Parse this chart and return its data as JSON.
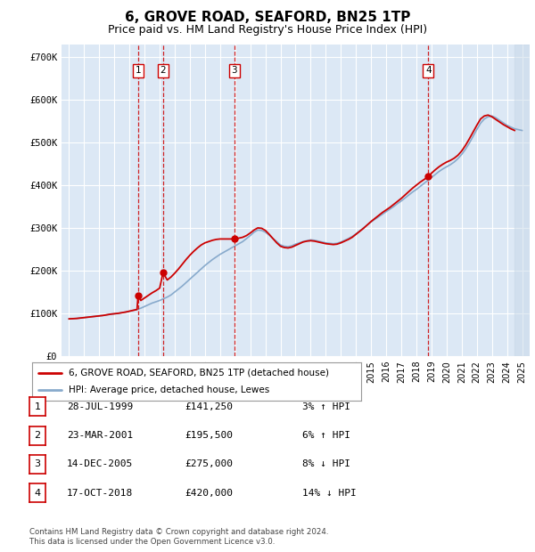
{
  "title": "6, GROVE ROAD, SEAFORD, BN25 1TP",
  "subtitle": "Price paid vs. HM Land Registry's House Price Index (HPI)",
  "title_fontsize": 11,
  "subtitle_fontsize": 9,
  "xlim_start": 1994.5,
  "xlim_end": 2025.5,
  "ylim_min": 0,
  "ylim_max": 730000,
  "yticks": [
    0,
    100000,
    200000,
    300000,
    400000,
    500000,
    600000,
    700000
  ],
  "ytick_labels": [
    "£0",
    "£100K",
    "£200K",
    "£300K",
    "£400K",
    "£500K",
    "£600K",
    "£700K"
  ],
  "plot_bg_color": "#dce8f5",
  "grid_color": "#ffffff",
  "transactions": [
    {
      "label": "1",
      "date": "28-JUL-1999",
      "year": 1999.57,
      "price": 141250
    },
    {
      "label": "2",
      "date": "23-MAR-2001",
      "year": 2001.22,
      "price": 195500
    },
    {
      "label": "3",
      "date": "14-DEC-2005",
      "year": 2005.95,
      "price": 275000
    },
    {
      "label": "4",
      "date": "17-OCT-2018",
      "year": 2018.79,
      "price": 420000
    }
  ],
  "hpi_years": [
    1995.0,
    1995.25,
    1995.5,
    1995.75,
    1996.0,
    1996.25,
    1996.5,
    1996.75,
    1997.0,
    1997.25,
    1997.5,
    1997.75,
    1998.0,
    1998.25,
    1998.5,
    1998.75,
    1999.0,
    1999.25,
    1999.5,
    1999.75,
    2000.0,
    2000.25,
    2000.5,
    2000.75,
    2001.0,
    2001.25,
    2001.5,
    2001.75,
    2002.0,
    2002.25,
    2002.5,
    2002.75,
    2003.0,
    2003.25,
    2003.5,
    2003.75,
    2004.0,
    2004.25,
    2004.5,
    2004.75,
    2005.0,
    2005.25,
    2005.5,
    2005.75,
    2006.0,
    2006.25,
    2006.5,
    2006.75,
    2007.0,
    2007.25,
    2007.5,
    2007.75,
    2008.0,
    2008.25,
    2008.5,
    2008.75,
    2009.0,
    2009.25,
    2009.5,
    2009.75,
    2010.0,
    2010.25,
    2010.5,
    2010.75,
    2011.0,
    2011.25,
    2011.5,
    2011.75,
    2012.0,
    2012.25,
    2012.5,
    2012.75,
    2013.0,
    2013.25,
    2013.5,
    2013.75,
    2014.0,
    2014.25,
    2014.5,
    2014.75,
    2015.0,
    2015.25,
    2015.5,
    2015.75,
    2016.0,
    2016.25,
    2016.5,
    2016.75,
    2017.0,
    2017.25,
    2017.5,
    2017.75,
    2018.0,
    2018.25,
    2018.5,
    2018.75,
    2019.0,
    2019.25,
    2019.5,
    2019.75,
    2020.0,
    2020.25,
    2020.5,
    2020.75,
    2021.0,
    2021.25,
    2021.5,
    2021.75,
    2022.0,
    2022.25,
    2022.5,
    2022.75,
    2023.0,
    2023.25,
    2023.5,
    2023.75,
    2024.0,
    2024.25,
    2024.5,
    2024.75,
    2025.0
  ],
  "hpi_values": [
    87000,
    87500,
    88000,
    89000,
    90000,
    91000,
    92000,
    93000,
    94000,
    95000,
    96500,
    98000,
    99000,
    100000,
    101500,
    103000,
    105000,
    107000,
    109000,
    112000,
    116000,
    120000,
    124000,
    127000,
    130000,
    134000,
    138000,
    143000,
    150000,
    157000,
    164000,
    172000,
    180000,
    188000,
    196000,
    204000,
    212000,
    219000,
    226000,
    232000,
    238000,
    243000,
    248000,
    253000,
    258000,
    263000,
    268000,
    275000,
    282000,
    290000,
    295000,
    294000,
    290000,
    283000,
    275000,
    268000,
    260000,
    257000,
    256000,
    258000,
    262000,
    265000,
    268000,
    270000,
    272000,
    271000,
    269000,
    267000,
    265000,
    264000,
    263000,
    264000,
    267000,
    271000,
    275000,
    280000,
    286000,
    293000,
    300000,
    307000,
    314000,
    320000,
    326000,
    332000,
    338000,
    344000,
    350000,
    357000,
    363000,
    370000,
    377000,
    384000,
    390000,
    397000,
    404000,
    411000,
    418000,
    425000,
    432000,
    438000,
    443000,
    448000,
    454000,
    462000,
    472000,
    484000,
    498000,
    514000,
    530000,
    545000,
    555000,
    560000,
    562000,
    558000,
    552000,
    546000,
    540000,
    536000,
    532000,
    530000,
    528000
  ],
  "price_years": [
    1995.0,
    1995.25,
    1995.5,
    1995.75,
    1996.0,
    1996.25,
    1996.5,
    1996.75,
    1997.0,
    1997.25,
    1997.5,
    1997.75,
    1998.0,
    1998.25,
    1998.5,
    1998.75,
    1999.0,
    1999.25,
    1999.5,
    1999.57,
    1999.75,
    2000.0,
    2000.25,
    2000.5,
    2000.75,
    2001.0,
    2001.22,
    2001.5,
    2001.75,
    2002.0,
    2002.25,
    2002.5,
    2002.75,
    2003.0,
    2003.25,
    2003.5,
    2003.75,
    2004.0,
    2004.25,
    2004.5,
    2004.75,
    2005.0,
    2005.25,
    2005.5,
    2005.75,
    2005.95,
    2006.0,
    2006.25,
    2006.5,
    2006.75,
    2007.0,
    2007.25,
    2007.5,
    2007.75,
    2008.0,
    2008.25,
    2008.5,
    2008.75,
    2009.0,
    2009.25,
    2009.5,
    2009.75,
    2010.0,
    2010.25,
    2010.5,
    2010.75,
    2011.0,
    2011.25,
    2011.5,
    2011.75,
    2012.0,
    2012.25,
    2012.5,
    2012.75,
    2013.0,
    2013.25,
    2013.5,
    2013.75,
    2014.0,
    2014.25,
    2014.5,
    2014.75,
    2015.0,
    2015.25,
    2015.5,
    2015.75,
    2016.0,
    2016.25,
    2016.5,
    2016.75,
    2017.0,
    2017.25,
    2017.5,
    2017.75,
    2018.0,
    2018.25,
    2018.5,
    2018.79,
    2019.0,
    2019.25,
    2019.5,
    2019.75,
    2020.0,
    2020.25,
    2020.5,
    2020.75,
    2021.0,
    2021.25,
    2021.5,
    2021.75,
    2022.0,
    2022.25,
    2022.5,
    2022.75,
    2023.0,
    2023.25,
    2023.5,
    2023.75,
    2024.0,
    2024.25,
    2024.5
  ],
  "price_values": [
    87000,
    87500,
    88000,
    89000,
    90000,
    91000,
    92000,
    93000,
    94000,
    95000,
    96500,
    98000,
    99000,
    100000,
    101500,
    103000,
    105000,
    107000,
    109000,
    141250,
    130000,
    136000,
    142000,
    148000,
    153000,
    159000,
    195500,
    178000,
    185000,
    194000,
    204000,
    215000,
    226000,
    236000,
    245000,
    253000,
    260000,
    265000,
    268000,
    271000,
    273000,
    274000,
    274000,
    274000,
    274000,
    275000,
    274000,
    276000,
    278000,
    282000,
    288000,
    295000,
    300000,
    299000,
    294000,
    285000,
    275000,
    265000,
    257000,
    254000,
    253000,
    255000,
    259000,
    263000,
    267000,
    269000,
    270000,
    269000,
    267000,
    265000,
    263000,
    262000,
    261000,
    262000,
    265000,
    269000,
    273000,
    278000,
    285000,
    292000,
    299000,
    307000,
    315000,
    322000,
    329000,
    336000,
    342000,
    348000,
    355000,
    362000,
    369000,
    377000,
    385000,
    393000,
    400000,
    407000,
    413000,
    420000,
    428000,
    436000,
    443000,
    449000,
    454000,
    458000,
    463000,
    470000,
    480000,
    493000,
    508000,
    524000,
    540000,
    555000,
    562000,
    564000,
    560000,
    554000,
    548000,
    542000,
    537000,
    532000,
    528000
  ],
  "line_color_red": "#cc0000",
  "line_color_blue": "#88aacc",
  "transaction_line_color": "#cc0000",
  "legend_label_red": "6, GROVE ROAD, SEAFORD, BN25 1TP (detached house)",
  "legend_label_blue": "HPI: Average price, detached house, Lewes",
  "footer_text": "Contains HM Land Registry data © Crown copyright and database right 2024.\nThis data is licensed under the Open Government Licence v3.0.",
  "table_rows": [
    [
      "1",
      "28-JUL-1999",
      "£141,250",
      "3% ↑ HPI"
    ],
    [
      "2",
      "23-MAR-2001",
      "£195,500",
      "6% ↑ HPI"
    ],
    [
      "3",
      "14-DEC-2005",
      "£275,000",
      "8% ↓ HPI"
    ],
    [
      "4",
      "17-OCT-2018",
      "£420,000",
      "14% ↓ HPI"
    ]
  ]
}
